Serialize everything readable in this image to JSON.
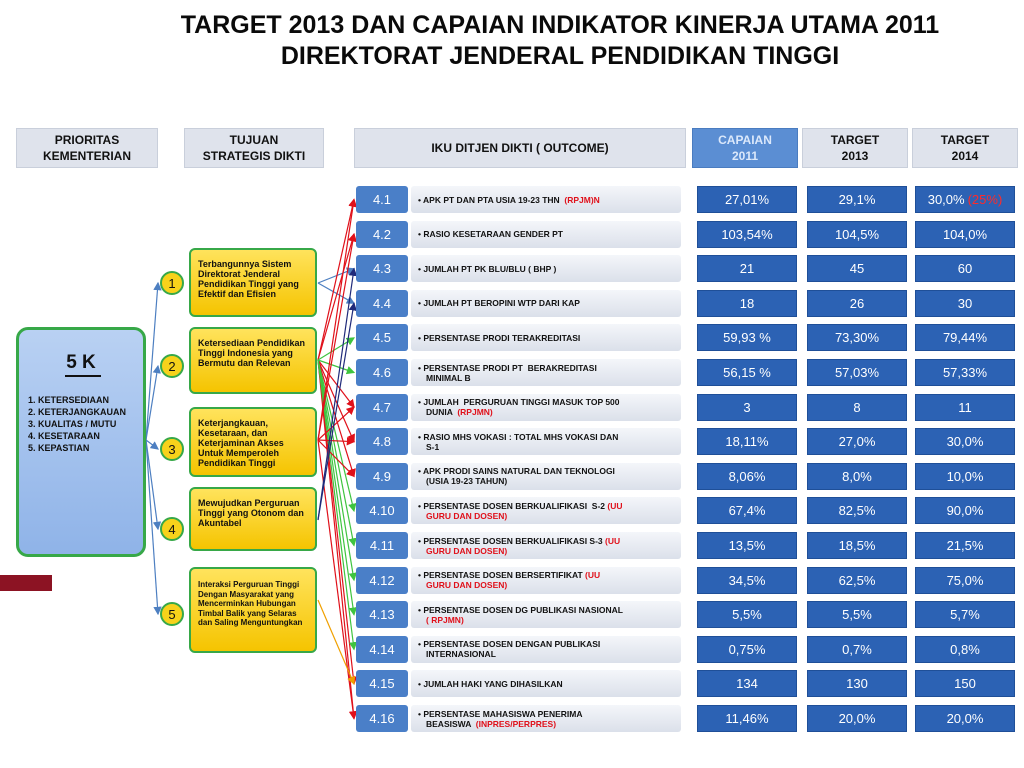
{
  "title": {
    "line1": "TARGET 2013 DAN CAPAIAN INDIKATOR KINERJA UTAMA 2011",
    "line2": "DIREKTORAT JENDERAL PENDIDIKAN TINGGI"
  },
  "headers": {
    "prioritas": [
      "PRIORITAS",
      "KEMENTERIAN"
    ],
    "tujuan": [
      "TUJUAN",
      "STRATEGIS DIKTI"
    ],
    "iku": "IKU DITJEN DIKTI ( OUTCOME)",
    "capaian": [
      "CAPAIAN",
      "2011"
    ],
    "target2013": [
      "TARGET",
      "2013"
    ],
    "target2014": [
      "TARGET",
      "2014"
    ]
  },
  "five_k": {
    "title": "5 K",
    "items": [
      "1. KETERSEDIAAN",
      "2. KETERJANGKAUAN",
      "3. KUALITAS / MUTU",
      "4. KESETARAAN",
      "5. KEPASTIAN"
    ]
  },
  "tujuan": [
    {
      "num": "1",
      "text": [
        "Terbangunnya Sistem",
        "Direktorat Jenderal",
        "Pendidikan Tinggi yang",
        "Efektif dan Efisien"
      ]
    },
    {
      "num": "2",
      "text": [
        "Ketersediaan Pendidikan",
        "Tinggi Indonesia yang",
        "Bermutu dan Relevan"
      ]
    },
    {
      "num": "3",
      "text": [
        "Keterjangkauan,",
        "Kesetaraan, dan",
        "Keterjaminan Akses",
        "Untuk Memperoleh",
        "Pendidikan Tinggi"
      ]
    },
    {
      "num": "4",
      "text": [
        "Mewujudkan Perguruan",
        "Tinggi yang Otonom dan",
        "Akuntabel"
      ]
    },
    {
      "num": "5",
      "text": [
        "Interaksi Perguruan Tinggi",
        "Dengan Masyarakat yang",
        "Mencerminkan Hubungan",
        "Timbal Balik yang Selaras",
        "dan Saling Menguntungkan"
      ]
    }
  ],
  "iku_rows": [
    {
      "num": "4.1",
      "line1": "APK PT DAN PTA USIA 19-23 THN  ",
      "line1_red": "(RPJM)N",
      "line2": "",
      "line2_red": "",
      "capaian": "27,01%",
      "t2013": "29,1%",
      "t2014": "30,0%",
      "t2014_red": "(25%)"
    },
    {
      "num": "4.2",
      "line1": "RASIO KESETARAAN GENDER PT",
      "line1_red": "",
      "line2": "",
      "line2_red": "",
      "capaian": "103,54%",
      "t2013": "104,5%",
      "t2014": "104,0%",
      "t2014_red": ""
    },
    {
      "num": "4.3",
      "line1": "JUMLAH PT PK BLU/BLU ( BHP )",
      "line1_red": "",
      "line2": "",
      "line2_red": "",
      "capaian": "21",
      "t2013": "45",
      "t2014": "60",
      "t2014_red": ""
    },
    {
      "num": "4.4",
      "line1": "JUMLAH PT BEROPINI WTP DARI KAP",
      "line1_red": "",
      "line2": "",
      "line2_red": "",
      "capaian": "18",
      "t2013": "26",
      "t2014": "30",
      "t2014_red": ""
    },
    {
      "num": "4.5",
      "line1": "PERSENTASE PRODI TERAKREDITASI",
      "line1_red": "",
      "line2": "",
      "line2_red": "",
      "capaian": "59,93 %",
      "t2013": "73,30%",
      "t2014": "79,44%",
      "t2014_red": ""
    },
    {
      "num": "4.6",
      "line1": "PERSENTASE PRODI PT  BERAKREDITASI",
      "line1_red": "",
      "line2": "MINIMAL B",
      "line2_red": "",
      "capaian": "56,15 %",
      "t2013": "57,03%",
      "t2014": "57,33%",
      "t2014_red": ""
    },
    {
      "num": "4.7",
      "line1": "JUMLAH  PERGURUAN TINGGI MASUK TOP 500",
      "line1_red": "",
      "line2": "DUNIA  ",
      "line2_red": "(RPJMN)",
      "capaian": "3",
      "t2013": "8",
      "t2014": "11",
      "t2014_red": ""
    },
    {
      "num": "4.8",
      "line1": "RASIO MHS VOKASI : TOTAL MHS VOKASI DAN",
      "line1_red": "",
      "line2": "S-1",
      "line2_red": "",
      "capaian": "18,11%",
      "t2013": "27,0%",
      "t2014": "30,0%",
      "t2014_red": ""
    },
    {
      "num": "4.9",
      "line1": "APK PRODI SAINS NATURAL DAN TEKNOLOGI",
      "line1_red": "",
      "line2": "(USIA 19-23 TAHUN)",
      "line2_red": "",
      "capaian": "8,06%",
      "t2013": "8,0%",
      "t2014": "10,0%",
      "t2014_red": ""
    },
    {
      "num": "4.10",
      "line1": "PERSENTASE DOSEN BERKUALIFIKASI  S-2 ",
      "line1_red": "(UU",
      "line2": "",
      "line2_red": "GURU DAN DOSEN)",
      "capaian": "67,4%",
      "t2013": "82,5%",
      "t2014": "90,0%",
      "t2014_red": ""
    },
    {
      "num": "4.11",
      "line1": "PERSENTASE DOSEN BERKUALIFIKASI S-3 ",
      "line1_red": "(UU",
      "line2": "",
      "line2_red": "GURU DAN DOSEN)",
      "capaian": "13,5%",
      "t2013": "18,5%",
      "t2014": "21,5%",
      "t2014_red": ""
    },
    {
      "num": "4.12",
      "line1": "PERSENTASE DOSEN BERSERTIFIKAT ",
      "line1_red": "(UU",
      "line2": "",
      "line2_red": "GURU DAN DOSEN)",
      "capaian": "34,5%",
      "t2013": "62,5%",
      "t2014": "75,0%",
      "t2014_red": ""
    },
    {
      "num": "4.13",
      "line1": "PERSENTASE DOSEN DG PUBLIKASI NASIONAL",
      "line1_red": "",
      "line2": "",
      "line2_red": "( RPJMN)",
      "capaian": "5,5%",
      "t2013": "5,5%",
      "t2014": "5,7%",
      "t2014_red": ""
    },
    {
      "num": "4.14",
      "line1": "PERSENTASE DOSEN DENGAN PUBLIKASI",
      "line1_red": "",
      "line2": "INTERNASIONAL",
      "line2_red": "",
      "capaian": "0,75%",
      "t2013": "0,7%",
      "t2014": "0,8%",
      "t2014_red": ""
    },
    {
      "num": "4.15",
      "line1": "JUMLAH HAKI YANG DIHASILKAN",
      "line1_red": "",
      "line2": "",
      "line2_red": "",
      "capaian": "134",
      "t2013": "130",
      "t2014": "150",
      "t2014_red": ""
    },
    {
      "num": "4.16",
      "line1": "PERSENTASE MAHASISWA PENERIMA",
      "line1_red": "",
      "line2": "BEASISWA  ",
      "line2_red": "(INPRES/PERPRES)",
      "capaian": "11,46%",
      "t2013": "20,0%",
      "t2014": "20,0%",
      "t2014_red": ""
    }
  ],
  "colors": {
    "iku_num_blue": "#4a7fc8",
    "value_blue": "#2c62b4",
    "capaian_header": "#5b8ed3",
    "tujuan_yellow": "#f5c400",
    "border_green": "#37a848",
    "arrow_blue": "#4d7fc1",
    "arrow_red": "#e0101a",
    "arrow_green": "#3fc43f",
    "arrow_navy": "#1f2a7a",
    "arrow_orange": "#f0a000",
    "maroon": "#8c1323"
  }
}
